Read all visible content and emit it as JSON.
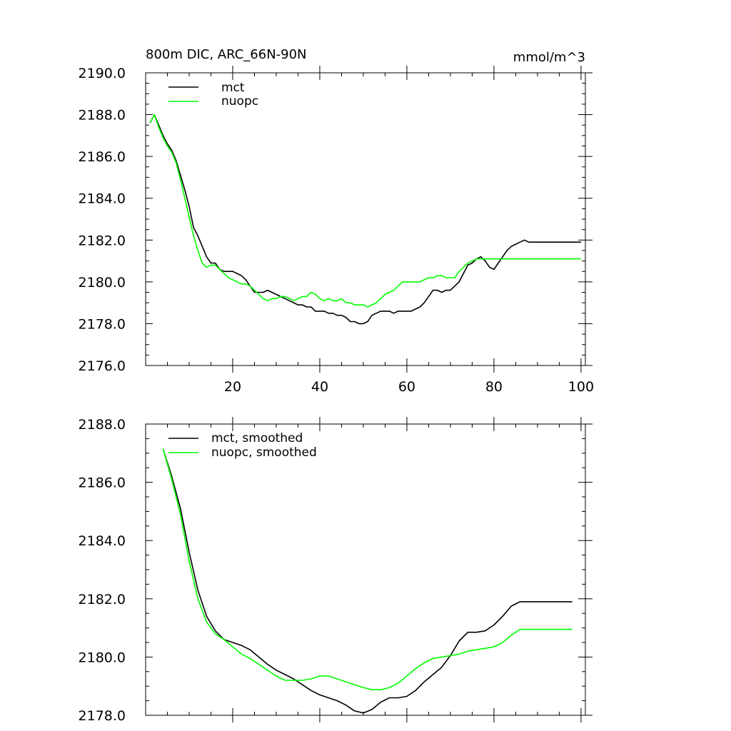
{
  "chart_data": [
    {
      "type": "line",
      "title": "800m DIC, ARC_66N-90N",
      "units": "mmol/m^3",
      "xlim": [
        0,
        101
      ],
      "ylim": [
        2176,
        2190
      ],
      "xticks": [
        20,
        40,
        60,
        80,
        100
      ],
      "yticks": [
        2176,
        2178,
        2180,
        2182,
        2184,
        2186,
        2188,
        2190
      ],
      "xtick_labels": [
        "20",
        "40",
        "60",
        "80",
        "100"
      ],
      "ytick_labels": [
        "2176.0",
        "2178.0",
        "2180.0",
        "2182.0",
        "2184.0",
        "2186.0",
        "2188.0",
        "2190.0"
      ],
      "legend": [
        "mct",
        "nuopc"
      ],
      "legend_position": "top-left",
      "series": [
        {
          "name": "mct",
          "color": "#000000",
          "x": [
            1,
            2,
            3,
            4,
            5,
            6,
            7,
            8,
            9,
            10,
            11,
            12,
            13,
            14,
            15,
            16,
            17,
            18,
            19,
            20,
            21,
            22,
            23,
            24,
            25,
            26,
            27,
            28,
            29,
            30,
            31,
            32,
            33,
            34,
            35,
            36,
            37,
            38,
            39,
            40,
            41,
            42,
            43,
            44,
            45,
            46,
            47,
            48,
            49,
            50,
            51,
            52,
            53,
            54,
            55,
            56,
            57,
            58,
            59,
            60,
            61,
            62,
            63,
            64,
            65,
            66,
            67,
            68,
            69,
            70,
            71,
            72,
            73,
            74,
            75,
            76,
            77,
            78,
            79,
            80,
            81,
            82,
            83,
            84,
            85,
            86,
            87,
            88,
            89,
            90,
            91,
            92,
            93,
            94,
            95,
            96,
            97,
            98,
            99,
            100
          ],
          "y": [
            2187.6,
            2188.0,
            2187.5,
            2187.0,
            2186.6,
            2186.3,
            2185.8,
            2185.1,
            2184.4,
            2183.6,
            2182.6,
            2182.2,
            2181.7,
            2181.2,
            2180.9,
            2180.9,
            2180.6,
            2180.5,
            2180.5,
            2180.5,
            2180.4,
            2180.3,
            2180.1,
            2179.8,
            2179.5,
            2179.5,
            2179.5,
            2179.6,
            2179.5,
            2179.4,
            2179.3,
            2179.2,
            2179.1,
            2179.0,
            2178.9,
            2178.9,
            2178.8,
            2178.8,
            2178.6,
            2178.6,
            2178.6,
            2178.5,
            2178.5,
            2178.4,
            2178.4,
            2178.3,
            2178.1,
            2178.1,
            2178.0,
            2178.0,
            2178.1,
            2178.4,
            2178.5,
            2178.6,
            2178.6,
            2178.6,
            2178.5,
            2178.6,
            2178.6,
            2178.6,
            2178.6,
            2178.7,
            2178.8,
            2179.0,
            2179.3,
            2179.6,
            2179.6,
            2179.5,
            2179.6,
            2179.6,
            2179.8,
            2180.0,
            2180.4,
            2180.8,
            2180.9,
            2181.1,
            2181.2,
            2181.0,
            2180.7,
            2180.6,
            2180.9,
            2181.2,
            2181.5,
            2181.7,
            2181.8,
            2181.9,
            2182.0,
            2181.9,
            2181.9,
            2181.9,
            2181.9,
            2181.9,
            2181.9,
            2181.9,
            2181.9,
            2181.9,
            2181.9,
            2181.9,
            2181.9,
            2181.9
          ]
        },
        {
          "name": "nuopc",
          "color": "#00ff00",
          "x": [
            1,
            2,
            3,
            4,
            5,
            6,
            7,
            8,
            9,
            10,
            11,
            12,
            13,
            14,
            15,
            16,
            17,
            18,
            19,
            20,
            21,
            22,
            23,
            24,
            25,
            26,
            27,
            28,
            29,
            30,
            31,
            32,
            33,
            34,
            35,
            36,
            37,
            38,
            39,
            40,
            41,
            42,
            43,
            44,
            45,
            46,
            47,
            48,
            49,
            50,
            51,
            52,
            53,
            54,
            55,
            56,
            57,
            58,
            59,
            60,
            61,
            62,
            63,
            64,
            65,
            66,
            67,
            68,
            69,
            70,
            71,
            72,
            73,
            74,
            75,
            76,
            77,
            78,
            79,
            80,
            81,
            82,
            83,
            84,
            85,
            86,
            87,
            88,
            89,
            90,
            91,
            92,
            93,
            94,
            95,
            96,
            97,
            98,
            99,
            100
          ],
          "y": [
            2187.6,
            2188.0,
            2187.4,
            2186.9,
            2186.5,
            2186.2,
            2185.7,
            2184.9,
            2184.0,
            2183.1,
            2182.2,
            2181.5,
            2180.9,
            2180.7,
            2180.8,
            2180.8,
            2180.6,
            2180.4,
            2180.2,
            2180.1,
            2180.0,
            2179.9,
            2179.9,
            2179.8,
            2179.6,
            2179.4,
            2179.2,
            2179.1,
            2179.2,
            2179.2,
            2179.3,
            2179.3,
            2179.2,
            2179.1,
            2179.2,
            2179.3,
            2179.3,
            2179.5,
            2179.4,
            2179.2,
            2179.1,
            2179.2,
            2179.1,
            2179.1,
            2179.2,
            2179.0,
            2179.0,
            2178.9,
            2178.9,
            2178.9,
            2178.8,
            2178.9,
            2179.0,
            2179.2,
            2179.4,
            2179.5,
            2179.6,
            2179.8,
            2180.0,
            2180.0,
            2180.0,
            2180.0,
            2180.0,
            2180.1,
            2180.2,
            2180.2,
            2180.3,
            2180.3,
            2180.2,
            2180.2,
            2180.2,
            2180.5,
            2180.7,
            2180.9,
            2181.0,
            2181.1,
            2181.1,
            2181.1,
            2181.1,
            2181.1,
            2181.1,
            2181.1,
            2181.1,
            2181.1,
            2181.1,
            2181.1,
            2181.1,
            2181.1,
            2181.1,
            2181.1,
            2181.1,
            2181.1,
            2181.1,
            2181.1,
            2181.1,
            2181.1,
            2181.1,
            2181.1,
            2181.1,
            2181.1
          ]
        }
      ]
    },
    {
      "type": "line",
      "xlim": [
        0,
        101
      ],
      "ylim": [
        2178,
        2188
      ],
      "xticks": [
        20,
        40,
        60,
        80,
        100
      ],
      "yticks": [
        2178,
        2180,
        2182,
        2184,
        2186,
        2188
      ],
      "ytick_labels": [
        "2178.0",
        "2180.0",
        "2182.0",
        "2184.0",
        "2186.0",
        "2188.0"
      ],
      "legend": [
        "mct, smoothed",
        "nuopc, smoothed"
      ],
      "legend_position": "top-left",
      "series": [
        {
          "name": "mct, smoothed",
          "color": "#000000",
          "x": [
            4,
            6,
            8,
            10,
            12,
            14,
            16,
            18,
            20,
            22,
            24,
            26,
            28,
            30,
            32,
            34,
            36,
            38,
            40,
            42,
            44,
            46,
            48,
            50,
            52,
            54,
            56,
            58,
            60,
            62,
            64,
            66,
            68,
            70,
            72,
            74,
            76,
            78,
            80,
            82,
            84,
            86,
            88,
            90,
            92,
            94,
            96,
            98
          ],
          "y": [
            2187.15,
            2186.2,
            2185.1,
            2183.6,
            2182.3,
            2181.4,
            2180.9,
            2180.6,
            2180.5,
            2180.4,
            2180.25,
            2180.0,
            2179.75,
            2179.55,
            2179.4,
            2179.25,
            2179.05,
            2178.85,
            2178.7,
            2178.6,
            2178.5,
            2178.35,
            2178.15,
            2178.08,
            2178.2,
            2178.45,
            2178.6,
            2178.6,
            2178.65,
            2178.85,
            2179.15,
            2179.4,
            2179.65,
            2180.05,
            2180.55,
            2180.85,
            2180.85,
            2180.9,
            2181.1,
            2181.4,
            2181.75,
            2181.9,
            2181.9,
            2181.9,
            2181.9,
            2181.9,
            2181.9,
            2181.9
          ]
        },
        {
          "name": "nuopc, smoothed",
          "color": "#00ff00",
          "x": [
            4,
            6,
            8,
            10,
            12,
            14,
            16,
            18,
            20,
            22,
            24,
            26,
            28,
            30,
            32,
            34,
            36,
            38,
            40,
            42,
            44,
            46,
            48,
            50,
            52,
            54,
            56,
            58,
            60,
            62,
            64,
            66,
            68,
            70,
            72,
            74,
            76,
            78,
            80,
            82,
            84,
            86,
            88,
            90,
            92,
            94,
            96,
            98
          ],
          "y": [
            2187.15,
            2186.1,
            2184.9,
            2183.3,
            2182.0,
            2181.2,
            2180.8,
            2180.6,
            2180.35,
            2180.1,
            2179.95,
            2179.75,
            2179.55,
            2179.35,
            2179.2,
            2179.2,
            2179.2,
            2179.25,
            2179.35,
            2179.35,
            2179.25,
            2179.15,
            2179.05,
            2178.95,
            2178.88,
            2178.88,
            2178.95,
            2179.1,
            2179.35,
            2179.6,
            2179.8,
            2179.95,
            2180.0,
            2180.05,
            2180.1,
            2180.2,
            2180.25,
            2180.3,
            2180.35,
            2180.5,
            2180.75,
            2180.95,
            2180.95,
            2180.95,
            2180.95,
            2180.95,
            2180.95,
            2180.95
          ]
        }
      ]
    }
  ]
}
